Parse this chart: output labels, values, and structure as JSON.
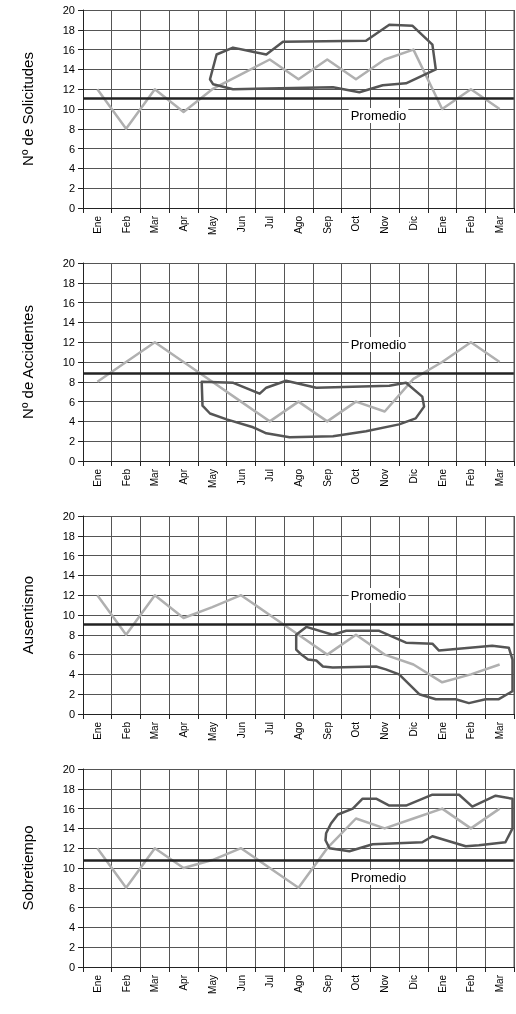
{
  "chart_data": [
    {
      "type": "line",
      "ylabel": "Nº de Solicitudes",
      "categories": [
        "Ene",
        "Feb",
        "Mar",
        "Apr",
        "May",
        "Jun",
        "Jul",
        "Ago",
        "Sep",
        "Oct",
        "Nov",
        "Dic",
        "Ene",
        "Feb",
        "Mar"
      ],
      "values": [
        12,
        8,
        12,
        9.7,
        12,
        13.5,
        15,
        13,
        15,
        13,
        15,
        16,
        10,
        12,
        10
      ],
      "color": "#b0b0b0",
      "ylim": [
        0,
        20
      ],
      "yticks": [
        0,
        2,
        4,
        6,
        8,
        10,
        12,
        14,
        16,
        18,
        20
      ],
      "grid": true,
      "marker": "none",
      "ref_lines": [
        {
          "axis": "y",
          "value": 11.1,
          "label": "Promedio",
          "color": "#222222"
        }
      ]
    },
    {
      "type": "line",
      "ylabel": "Nº de Accidentes",
      "categories": [
        "Ene",
        "Feb",
        "Mar",
        "Apr",
        "May",
        "Jun",
        "Jul",
        "Ago",
        "Sep",
        "Oct",
        "Nov",
        "Dic",
        "Ene",
        "Feb",
        "Mar"
      ],
      "values": [
        8,
        10,
        12,
        10,
        8,
        6,
        4,
        6,
        4,
        6,
        5,
        8.3,
        10,
        12,
        10
      ],
      "color": "#b0b0b0",
      "ylim": [
        0,
        20
      ],
      "yticks": [
        0,
        2,
        4,
        6,
        8,
        10,
        12,
        14,
        16,
        18,
        20
      ],
      "grid": true,
      "marker": "none",
      "ref_lines": [
        {
          "axis": "y",
          "value": 8.9,
          "label": "Promedio",
          "color": "#222222"
        }
      ]
    },
    {
      "type": "line",
      "ylabel": "Ausentismo",
      "categories": [
        "Ene",
        "Feb",
        "Mar",
        "Apr",
        "May",
        "Jun",
        "Jul",
        "Ago",
        "Sep",
        "Oct",
        "Nov",
        "Dic",
        "Ene",
        "Feb",
        "Mar"
      ],
      "values": [
        12,
        8,
        12,
        9.7,
        10.8,
        12,
        10,
        8,
        6,
        8,
        6,
        5,
        3.2,
        4,
        5
      ],
      "color": "#b0b0b0",
      "ylim": [
        0,
        20
      ],
      "yticks": [
        0,
        2,
        4,
        6,
        8,
        10,
        12,
        14,
        16,
        18,
        20
      ],
      "grid": true,
      "marker": "none",
      "ref_lines": [
        {
          "axis": "y",
          "value": 9.1,
          "label": "Promedio",
          "color": "#222222"
        }
      ]
    },
    {
      "type": "line",
      "ylabel": "Sobretiempo",
      "categories": [
        "Ene",
        "Feb",
        "Mar",
        "Apr",
        "May",
        "Jun",
        "Jul",
        "Ago",
        "Sep",
        "Oct",
        "Nov",
        "Dic",
        "Ene",
        "Feb",
        "Mar"
      ],
      "values": [
        12,
        8,
        12,
        10,
        10.8,
        12,
        10,
        8,
        12,
        15,
        14,
        15,
        16,
        14,
        16
      ],
      "color": "#b0b0b0",
      "ylim": [
        0,
        20
      ],
      "yticks": [
        0,
        2,
        4,
        6,
        8,
        10,
        12,
        14,
        16,
        18,
        20
      ],
      "grid": true,
      "marker": "none",
      "ref_lines": [
        {
          "axis": "y",
          "value": 10.8,
          "label": "Promedio",
          "color": "#222222"
        }
      ]
    }
  ]
}
